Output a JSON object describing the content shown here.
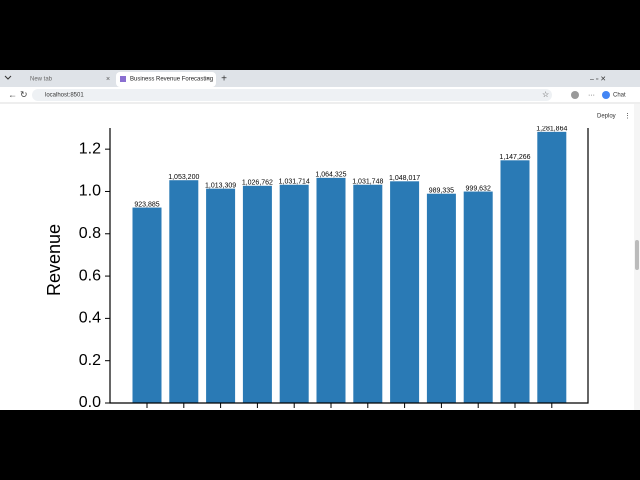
{
  "browser": {
    "tabs": [
      "New tab",
      "Business Revenue Forecasting"
    ],
    "url": "localhost:8501",
    "chat": "Chat"
  },
  "app": {
    "deploy": "Deploy"
  },
  "chart_data": {
    "type": "bar",
    "ylabel": "Revenue",
    "values": [
      923885,
      1053200,
      1013309,
      1026762,
      1031714,
      1064325,
      1031748,
      1048017,
      989335,
      999632,
      1147266,
      1281864
    ],
    "value_labels": [
      "923,885",
      "1,053,200",
      "1,013,309",
      "1,026,762",
      "1,031,714",
      "1,064,325",
      "1,031,748",
      "1,048,017",
      "989,335",
      "999,632",
      "1,147,266",
      "1,281,864"
    ],
    "color": "#2a7ab5",
    "ylim": [
      0,
      1300000
    ],
    "yticks": [
      {
        "value": 0,
        "label": "0.0"
      },
      {
        "value": 200000,
        "label": "0.2"
      },
      {
        "value": 400000,
        "label": "0.4"
      },
      {
        "value": 600000,
        "label": "0.6"
      },
      {
        "value": 800000,
        "label": "0.8"
      },
      {
        "value": 1000000,
        "label": "1.0"
      },
      {
        "value": 1200000,
        "label": "1.2"
      }
    ]
  }
}
